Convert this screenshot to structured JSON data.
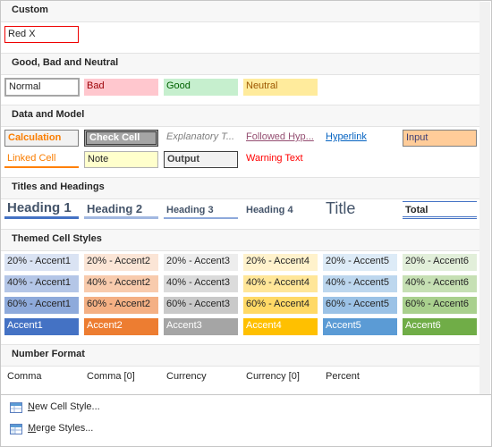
{
  "sections": {
    "custom": "Custom",
    "good_bad": "Good, Bad and Neutral",
    "data_model": "Data and Model",
    "titles": "Titles and Headings",
    "themed": "Themed Cell Styles",
    "number": "Number Format"
  },
  "custom": {
    "red_x": "Red X"
  },
  "good_bad": {
    "normal": "Normal",
    "bad": "Bad",
    "good": "Good",
    "neutral": "Neutral"
  },
  "data_model": {
    "calculation": "Calculation",
    "check_cell": "Check Cell",
    "explanatory": "Explanatory T...",
    "followed_hyperlink": "Followed Hyp...",
    "hyperlink": "Hyperlink",
    "input": "Input",
    "linked_cell": "Linked Cell",
    "note": "Note",
    "output": "Output",
    "warning": "Warning Text"
  },
  "titles": {
    "h1": "Heading 1",
    "h2": "Heading 2",
    "h3": "Heading 3",
    "h4": "Heading 4",
    "title": "Title",
    "total": "Total"
  },
  "themed": {
    "r20": [
      "20% - Accent1",
      "20% - Accent2",
      "20% - Accent3",
      "20% - Accent4",
      "20% - Accent5",
      "20% - Accent6"
    ],
    "r40": [
      "40% - Accent1",
      "40% - Accent2",
      "40% - Accent3",
      "40% - Accent4",
      "40% - Accent5",
      "40% - Accent6"
    ],
    "r60": [
      "60% - Accent1",
      "60% - Accent2",
      "60% - Accent3",
      "60% - Accent4",
      "60% - Accent5",
      "60% - Accent6"
    ],
    "acc": [
      "Accent1",
      "Accent2",
      "Accent3",
      "Accent4",
      "Accent5",
      "Accent6"
    ]
  },
  "number": {
    "comma": "Comma",
    "comma0": "Comma [0]",
    "currency": "Currency",
    "currency0": "Currency [0]",
    "percent": "Percent"
  },
  "footer": {
    "new_pre": "N",
    "new_rest": "ew Cell Style...",
    "merge_pre": "M",
    "merge_rest": "erge Styles..."
  },
  "colors": {
    "accent1": "#4472c4",
    "accent2": "#ed7d31",
    "accent3": "#a5a5a5",
    "accent4": "#ffc000",
    "accent5": "#5b9bd5",
    "accent6": "#70ad47"
  },
  "icons": [
    "new-cell-style-icon",
    "merge-styles-icon"
  ]
}
